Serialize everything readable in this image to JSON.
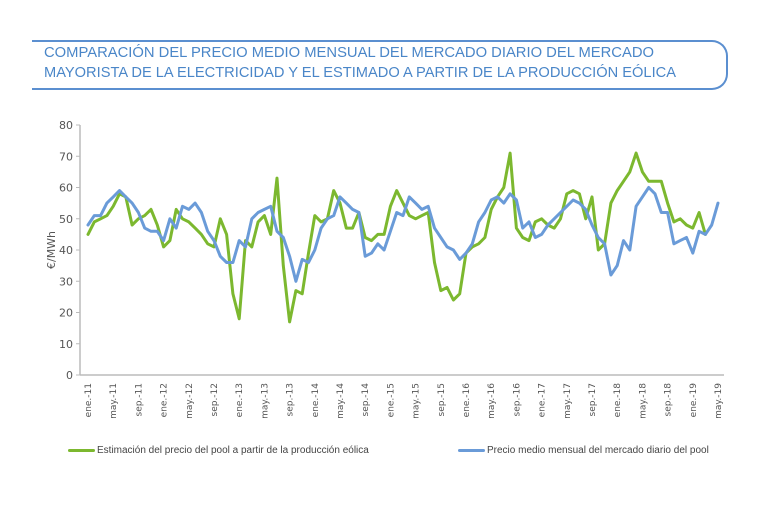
{
  "header": {
    "title_line1": "COMPARACIÓN DEL PRECIO MEDIO MENSUAL DEL MERCADO DIARIO DEL MERCADO",
    "title_line2": "MAYORISTA DE LA ELECTRICIDAD Y EL ESTIMADO A PARTIR DE LA PRODUCCIÓN EÓLICA"
  },
  "colors": {
    "title": "#4a86c8",
    "green": "#7cb82f",
    "blue": "#6a9bd8",
    "axis": "#bbbbbb"
  },
  "chart_data": {
    "type": "line",
    "title": "COMPARACIÓN DEL PRECIO MEDIO MENSUAL DEL MERCADO DIARIO DEL MERCADO MAYORISTA DE LA ELECTRICIDAD Y EL ESTIMADO A PARTIR DE LA PRODUCCIÓN EÓLICA",
    "xlabel": "",
    "ylabel": "€/MWh",
    "ylim": [
      0,
      80
    ],
    "yticks": [
      0,
      10,
      20,
      30,
      40,
      50,
      60,
      70,
      80
    ],
    "grid": false,
    "legend_position": "bottom",
    "x_start": "ene.-11",
    "x_count": 101,
    "xtick_labels": [
      "ene.-11",
      "may.-11",
      "sep.-11",
      "ene.-12",
      "may.-12",
      "sep.-12",
      "ene.-13",
      "may.-13",
      "sep.-13",
      "ene.-14",
      "may.-14",
      "sep.-14",
      "ene.-15",
      "may.-15",
      "sep.-15",
      "ene.-16",
      "may.-16",
      "sep.-16",
      "ene.-17",
      "may.-17",
      "sep.-17",
      "ene.-18",
      "may.-18",
      "sep.-18",
      "ene.-19",
      "may.-19"
    ],
    "xtick_every": 4,
    "series": [
      {
        "name": "Estimación del precio del pool a partir de la producción eólica",
        "color": "#7cb82f",
        "values": [
          45,
          49,
          50,
          51,
          54,
          58,
          57,
          48,
          50,
          51,
          53,
          48,
          41,
          43,
          53,
          50,
          49,
          47,
          45,
          42,
          41,
          50,
          45,
          26,
          18,
          43,
          41,
          49,
          51,
          45,
          63,
          35,
          17,
          27,
          26,
          39,
          51,
          49,
          50,
          59,
          55,
          47,
          47,
          52,
          44,
          43,
          45,
          45,
          54,
          59,
          55,
          51,
          50,
          51,
          52,
          36,
          27,
          28,
          24,
          26,
          39,
          41,
          42,
          44,
          53,
          57,
          60,
          71,
          47,
          44,
          43,
          49,
          50,
          48,
          47,
          50,
          58,
          59,
          58,
          50,
          57,
          40,
          42,
          55,
          59,
          62,
          65,
          71,
          65,
          62,
          62,
          62,
          55,
          49,
          50,
          48,
          47,
          52,
          45,
          null,
          null
        ]
      },
      {
        "name": "Precio medio mensual del mercado diario del pool",
        "color": "#6a9bd8",
        "values": [
          48,
          51,
          51,
          55,
          57,
          59,
          57,
          55,
          52,
          47,
          46,
          46,
          43,
          50,
          47,
          54,
          53,
          55,
          52,
          46,
          43,
          38,
          36,
          36,
          43,
          41,
          50,
          52,
          53,
          54,
          46,
          44,
          38,
          30,
          37,
          36,
          40,
          47,
          50,
          51,
          57,
          55,
          53,
          52,
          38,
          39,
          42,
          40,
          46,
          52,
          51,
          57,
          55,
          53,
          54,
          47,
          44,
          41,
          40,
          37,
          39,
          42,
          49,
          52,
          56,
          57,
          55,
          58,
          56,
          47,
          49,
          44,
          45,
          48,
          50,
          52,
          54,
          56,
          55,
          53,
          48,
          44,
          42,
          32,
          35,
          43,
          40,
          54,
          57,
          60,
          58,
          52,
          52,
          42,
          43,
          44,
          39,
          46,
          45,
          48,
          55
        ]
      }
    ]
  },
  "legend": {
    "green_label": "Estimación del precio del pool a partir de la producción eólica",
    "blue_label": "Precio medio mensual del mercado diario del pool"
  }
}
